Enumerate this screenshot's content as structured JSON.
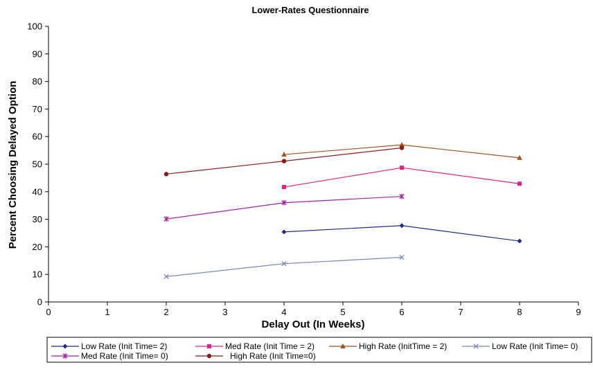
{
  "chart_data": {
    "type": "line",
    "title": "Lower-Rates Questionnaire",
    "xlabel": "Delay Out (In Weeks)",
    "ylabel": "Percent Choosing Delayed Option",
    "xlim": [
      0,
      9
    ],
    "ylim": [
      0,
      100
    ],
    "xticks": [
      "0",
      "1",
      "2",
      "3",
      "4",
      "5",
      "6",
      "7",
      "8",
      "9"
    ],
    "yticks": [
      "0",
      "10",
      "20",
      "30",
      "40",
      "50",
      "60",
      "70",
      "80",
      "90",
      "100"
    ],
    "grid": false,
    "legend_position": "bottom",
    "series": [
      {
        "name": "Low Rate (Init Time= 2)",
        "color": "#1f2a8c",
        "marker": "diamond",
        "points": [
          [
            4,
            25.4
          ],
          [
            6,
            27.7
          ],
          [
            8,
            22.1
          ]
        ]
      },
      {
        "name": "Med Rate (Init Time = 2)",
        "color": "#e0218a",
        "marker": "square",
        "points": [
          [
            4,
            41.7
          ],
          [
            6,
            48.7
          ],
          [
            8,
            42.9
          ]
        ]
      },
      {
        "name": "High Rate (InitTime = 2)",
        "color": "#a0521d",
        "marker": "triangle",
        "points": [
          [
            4,
            53.5
          ],
          [
            6,
            57.0
          ],
          [
            8,
            52.3
          ]
        ]
      },
      {
        "name": "Low Rate (Init Time= 0)",
        "color": "#7a86b5",
        "marker": "x",
        "points": [
          [
            2,
            9.2
          ],
          [
            4,
            13.9
          ],
          [
            6,
            16.2
          ]
        ]
      },
      {
        "name": "Med Rate (Init Time= 0)",
        "color": "#a020a0",
        "marker": "star",
        "points": [
          [
            2,
            30.1
          ],
          [
            4,
            36.0
          ],
          [
            6,
            38.3
          ]
        ]
      },
      {
        "name": "High Rate (Init Time=0)",
        "color": "#8b1a1a",
        "marker": "circle",
        "points": [
          [
            2,
            46.4
          ],
          [
            4,
            51.1
          ],
          [
            6,
            55.9
          ]
        ]
      }
    ]
  }
}
